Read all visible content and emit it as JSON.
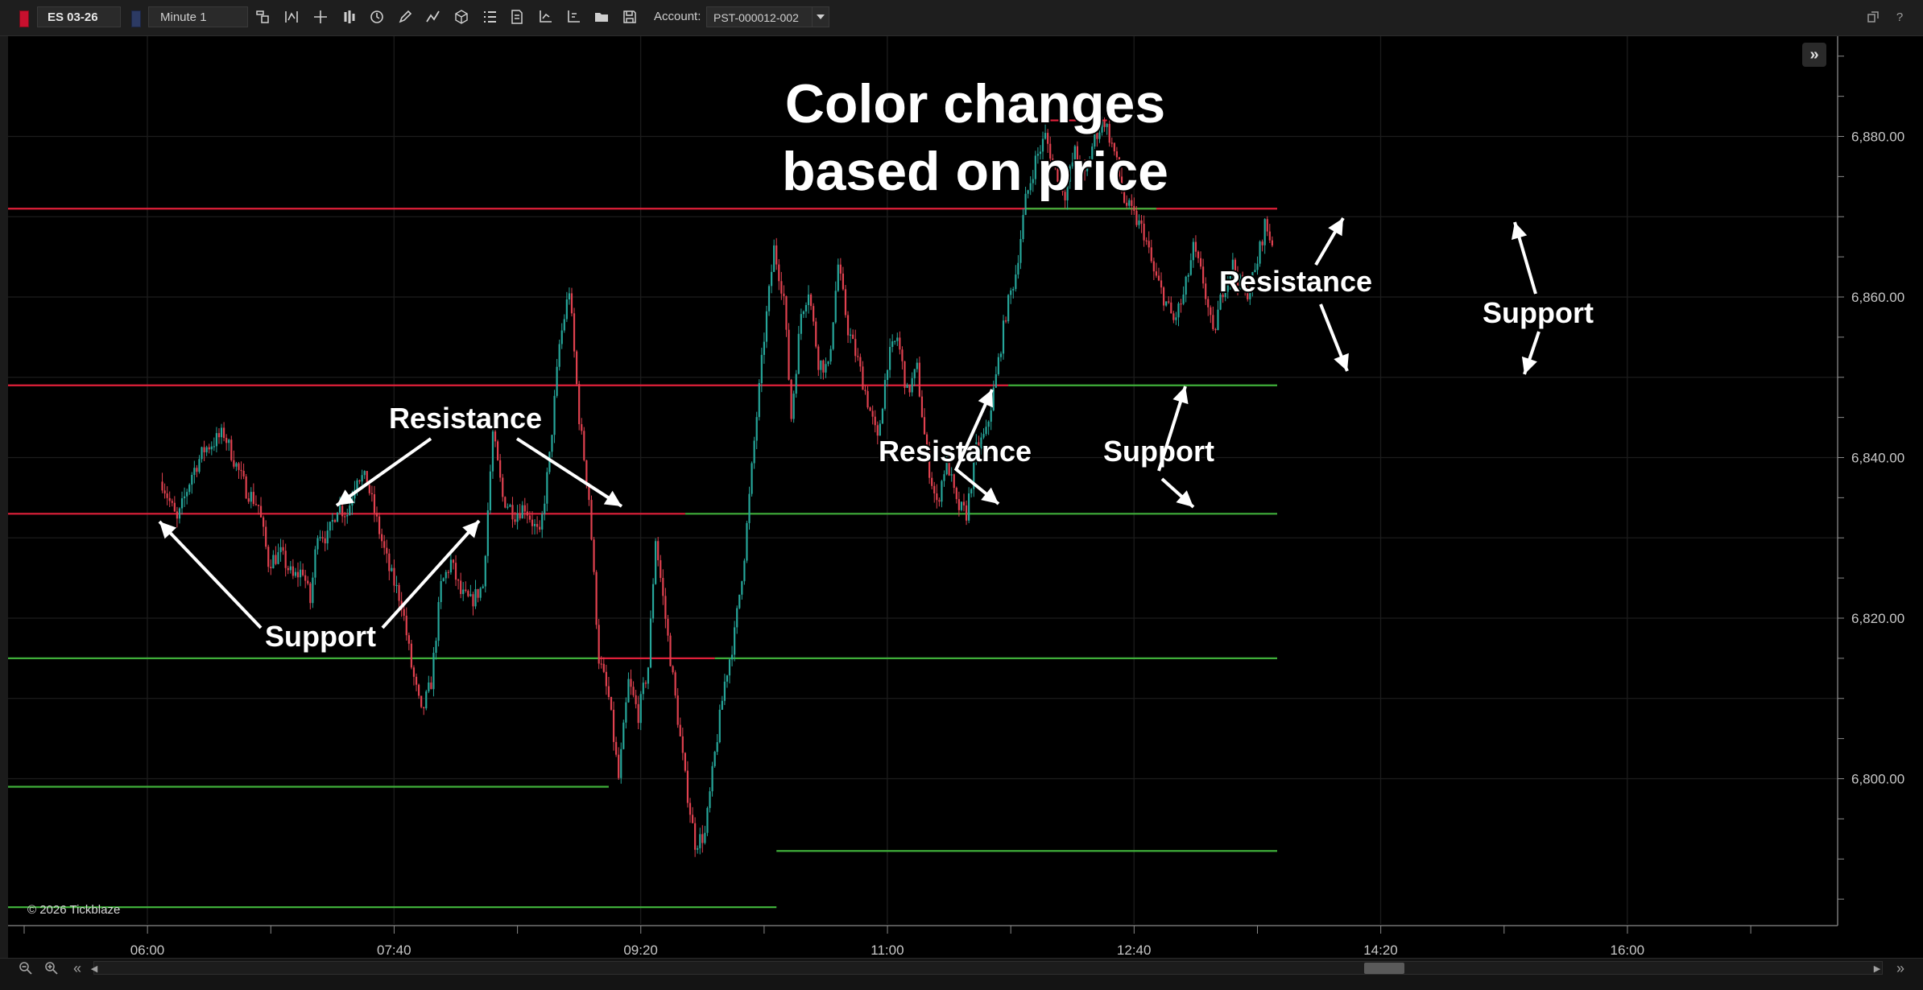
{
  "toolbar": {
    "symbol": "ES 03-26",
    "interval": "Minute 1",
    "account_label": "Account:",
    "account_value": "PST-000012-002",
    "icons": [
      "instrument-icon",
      "indicator-icon",
      "crosshair-icon",
      "chart-type-icon",
      "clock-icon",
      "pencil-icon",
      "drawing-icon",
      "objects-icon",
      "list-icon",
      "template-icon",
      "axis-icon",
      "axis-scale-icon",
      "folder-icon",
      "save-icon"
    ],
    "colors": {
      "symbol_swatch": "#c8102e",
      "interval_swatch": "#2c3a63"
    }
  },
  "window": {
    "help_label": "?"
  },
  "chart": {
    "copyright": "© 2026 Tickblaze",
    "colors": {
      "up_candle": "#26a69a",
      "down_candle": "#e0414f",
      "resistance": "#e0203a",
      "support": "#3fae3a",
      "grid": "#1c1c1c"
    }
  },
  "annotations": {
    "title_line1": "Color changes",
    "title_line2": "based on price",
    "labels": [
      {
        "id": "resistance-1",
        "text": "Resistance"
      },
      {
        "id": "support-1",
        "text": "Support"
      },
      {
        "id": "resistance-2",
        "text": "Resistance"
      },
      {
        "id": "support-2",
        "text": "Support"
      },
      {
        "id": "resistance-3",
        "text": "Resistance"
      },
      {
        "id": "support-3",
        "text": "Support"
      }
    ]
  },
  "chart_data": {
    "type": "candlestick",
    "symbol": "ES 03-26",
    "timeframe": "Minute 1",
    "x_ticks": [
      "06:00",
      "07:40",
      "09:20",
      "11:00",
      "12:40",
      "14:20",
      "16:00"
    ],
    "y_ticks": [
      "6,800.00",
      "6,820.00",
      "6,840.00",
      "6,860.00",
      "6,880.00"
    ],
    "ylim": [
      6779,
      6892
    ],
    "price_path": [
      [
        5.6,
        6837
      ],
      [
        6.2,
        6832
      ],
      [
        6.8,
        6838
      ],
      [
        7.3,
        6841
      ],
      [
        8.1,
        6843
      ],
      [
        8.6,
        6839
      ],
      [
        9.0,
        6836
      ],
      [
        9.5,
        6834
      ],
      [
        9.9,
        6827
      ],
      [
        10.4,
        6828
      ],
      [
        10.9,
        6825
      ],
      [
        11.3,
        6826
      ],
      [
        11.6,
        6822
      ],
      [
        11.9,
        6831
      ],
      [
        12.3,
        6830
      ],
      [
        12.7,
        6834
      ],
      [
        13.1,
        6833
      ],
      [
        13.5,
        6838
      ],
      [
        13.9,
        6837
      ],
      [
        14.3,
        6832
      ],
      [
        14.8,
        6826
      ],
      [
        15.3,
        6822
      ],
      [
        15.7,
        6814
      ],
      [
        16.1,
        6808
      ],
      [
        16.5,
        6812
      ],
      [
        16.9,
        6824
      ],
      [
        17.3,
        6827
      ],
      [
        17.7,
        6823
      ],
      [
        18.1,
        6822
      ],
      [
        18.6,
        6824
      ],
      [
        19.0,
        6843
      ],
      [
        19.4,
        6835
      ],
      [
        19.9,
        6833
      ],
      [
        20.3,
        6834
      ],
      [
        20.9,
        6830
      ],
      [
        21.3,
        6840
      ],
      [
        21.7,
        6854
      ],
      [
        22.1,
        6861
      ],
      [
        22.5,
        6845
      ],
      [
        22.9,
        6835
      ],
      [
        23.3,
        6815
      ],
      [
        23.7,
        6810
      ],
      [
        24.1,
        6800
      ],
      [
        24.5,
        6812
      ],
      [
        24.9,
        6808
      ],
      [
        25.3,
        6814
      ],
      [
        25.6,
        6830
      ],
      [
        26.0,
        6820
      ],
      [
        26.4,
        6810
      ],
      [
        26.8,
        6800
      ],
      [
        27.2,
        6792
      ],
      [
        27.6,
        6793
      ],
      [
        28.0,
        6803
      ],
      [
        28.4,
        6812
      ],
      [
        28.8,
        6818
      ],
      [
        29.2,
        6828
      ],
      [
        29.6,
        6842
      ],
      [
        30.0,
        6855
      ],
      [
        30.4,
        6866
      ],
      [
        30.8,
        6860
      ],
      [
        31.1,
        6845
      ],
      [
        31.5,
        6858
      ],
      [
        31.8,
        6861
      ],
      [
        32.2,
        6852
      ],
      [
        32.6,
        6851
      ],
      [
        33.0,
        6864
      ],
      [
        33.4,
        6856
      ],
      [
        33.8,
        6852
      ],
      [
        34.2,
        6847
      ],
      [
        34.6,
        6842
      ],
      [
        35.0,
        6852
      ],
      [
        35.4,
        6855
      ],
      [
        35.8,
        6848
      ],
      [
        36.2,
        6851
      ],
      [
        36.6,
        6840
      ],
      [
        37.0,
        6834
      ],
      [
        37.4,
        6840
      ],
      [
        37.8,
        6834
      ],
      [
        38.2,
        6833
      ],
      [
        38.6,
        6841
      ],
      [
        39.0,
        6843
      ],
      [
        39.4,
        6850
      ],
      [
        39.8,
        6858
      ],
      [
        40.2,
        6863
      ],
      [
        40.6,
        6872
      ],
      [
        41.0,
        6877
      ],
      [
        41.4,
        6880
      ],
      [
        41.8,
        6876
      ],
      [
        42.2,
        6873
      ],
      [
        42.6,
        6878
      ],
      [
        43.0,
        6875
      ],
      [
        43.4,
        6880
      ],
      [
        43.8,
        6882
      ],
      [
        44.2,
        6878
      ],
      [
        44.6,
        6872
      ],
      [
        45.0,
        6870
      ],
      [
        45.4,
        6868
      ],
      [
        45.8,
        6863
      ],
      [
        46.2,
        6860
      ],
      [
        46.6,
        6857
      ],
      [
        47.0,
        6860
      ],
      [
        47.4,
        6866
      ],
      [
        47.8,
        6862
      ],
      [
        48.2,
        6855
      ],
      [
        48.6,
        6861
      ],
      [
        49.0,
        6864
      ],
      [
        49.5,
        6860
      ],
      [
        49.9,
        6863
      ],
      [
        50.3,
        6869
      ],
      [
        50.7,
        6866
      ]
    ],
    "resistance_lines": [
      {
        "price": 6871,
        "from": -0.2,
        "to": 50.8
      },
      {
        "price": 6849,
        "from": -0.2,
        "to": 39.9
      },
      {
        "price": 6833,
        "from": -0.2,
        "to": 26.8
      },
      {
        "price": 6815,
        "from": 23.3,
        "to": 28.0
      },
      {
        "price": 6882,
        "from": 40.2,
        "to": 43.9
      },
      {
        "price": 6882,
        "from": 44.4,
        "to": 44.7
      }
    ],
    "support_lines": [
      {
        "price": 6833,
        "from": 26.8,
        "to": 50.8
      },
      {
        "price": 6815,
        "from": -0.2,
        "to": 23.3
      },
      {
        "price": 6815,
        "from": 28.0,
        "to": 50.8
      },
      {
        "price": 6849,
        "from": 39.9,
        "to": 50.8
      },
      {
        "price": 6871,
        "from": 40.6,
        "to": 45.9
      },
      {
        "price": 6799,
        "from": -0.2,
        "to": 23.7
      },
      {
        "price": 6791,
        "from": 30.5,
        "to": 50.8
      },
      {
        "price": 6784,
        "from": -0.2,
        "to": 30.5
      }
    ]
  }
}
